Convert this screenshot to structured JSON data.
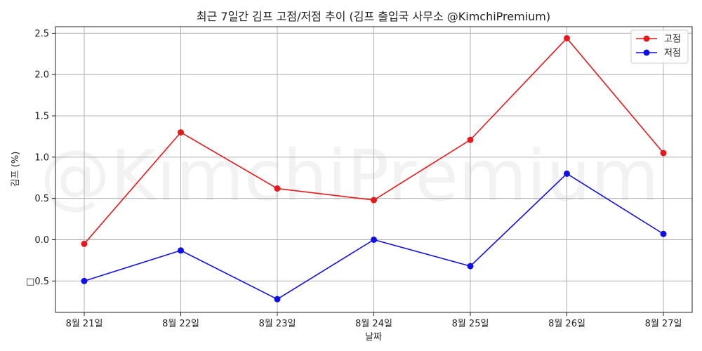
{
  "chart_data": {
    "type": "line",
    "title": "최근 7일간 김프 고점/저점 추이 (김프 출입국 사무소 @KimchiPremium)",
    "xlabel": "날짜",
    "ylabel": "김프 (%)",
    "categories": [
      "8월 21일",
      "8월 22일",
      "8월 23일",
      "8월 24일",
      "8월 25일",
      "8월 26일",
      "8월 27일"
    ],
    "series": [
      {
        "name": "고점",
        "color": "#e41a1c",
        "values": [
          -0.05,
          1.3,
          0.62,
          0.48,
          1.21,
          2.44,
          1.05
        ]
      },
      {
        "name": "저점",
        "color": "#1010e6",
        "values": [
          -0.5,
          -0.13,
          -0.72,
          0.0,
          -0.32,
          0.8,
          0.07
        ]
      }
    ],
    "ylim": [
      -0.88,
      2.58
    ],
    "yticks": [
      -0.5,
      0.0,
      0.5,
      1.0,
      1.5,
      2.0,
      2.5
    ],
    "ytick_labels": [
      "□0.5",
      "0.0",
      "0.5",
      "1.0",
      "1.5",
      "2.0",
      "2.5"
    ],
    "grid": true,
    "legend": "top-right",
    "watermark": "@KimchiPremium"
  }
}
